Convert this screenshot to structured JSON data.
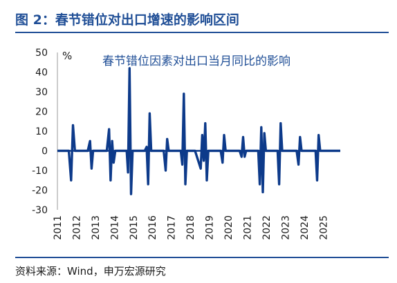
{
  "figure": {
    "title": "图 2：春节错位对出口增速的影响区间",
    "source": "资料来源：Wind，申万宏源研究"
  },
  "colors": {
    "accent": "#1f4e96",
    "line": "#0d3a8a"
  },
  "chart_data": {
    "type": "line",
    "title": "春节错位因素对出口当月同比的影响",
    "unit": "%",
    "xlabel": "",
    "ylabel": "",
    "ylim": [
      -30,
      50
    ],
    "yticks": [
      50,
      40,
      30,
      20,
      10,
      0,
      -10,
      -20,
      -30
    ],
    "xticks": [
      "2011",
      "2012",
      "2013",
      "2014",
      "2015",
      "2016",
      "2017",
      "2018",
      "2019",
      "2020",
      "2021",
      "2022",
      "2023",
      "2024",
      "2025"
    ],
    "xlim": [
      2011,
      2025.9
    ],
    "grid": false,
    "legend": "none",
    "series": [
      {
        "name": "",
        "x": [
          2011.0,
          2011.6,
          2011.72,
          2011.82,
          2011.92,
          2012.0,
          2012.08,
          2012.16,
          2012.25,
          2012.6,
          2012.72,
          2012.8,
          2012.88,
          2013.0,
          2013.08,
          2013.16,
          2013.25,
          2013.6,
          2013.72,
          2013.8,
          2013.88,
          2013.96,
          2014.05,
          2014.14,
          2014.25,
          2014.65,
          2014.72,
          2014.8,
          2014.88,
          2014.96,
          2015.05,
          2015.14,
          2015.25,
          2015.6,
          2015.7,
          2015.78,
          2015.86,
          2015.94,
          2016.02,
          2016.12,
          2016.25,
          2016.6,
          2016.7,
          2016.78,
          2016.86,
          2016.94,
          2017.02,
          2017.12,
          2017.25,
          2017.5,
          2017.58,
          2017.66,
          2017.74,
          2017.82,
          2017.92,
          2018.02,
          2018.12,
          2018.25,
          2018.55,
          2018.63,
          2018.71,
          2018.79,
          2018.87,
          2018.95,
          2019.05,
          2019.25,
          2019.6,
          2019.7,
          2019.78,
          2019.86,
          2019.94,
          2020.02,
          2020.12,
          2020.25,
          2020.6,
          2020.7,
          2020.78,
          2020.86,
          2020.94,
          2021.02,
          2021.12,
          2021.25,
          2021.5,
          2021.58,
          2021.66,
          2021.74,
          2021.82,
          2021.9,
          2021.98,
          2022.06,
          2022.14,
          2022.25,
          2022.6,
          2022.68,
          2022.76,
          2022.84,
          2022.92,
          2023.0,
          2023.1,
          2023.25,
          2023.6,
          2023.7,
          2023.78,
          2023.86,
          2023.94,
          2024.02,
          2024.12,
          2024.25,
          2024.6,
          2024.68,
          2024.76,
          2024.84,
          2024.92,
          2025.0,
          2025.1,
          2025.25,
          2025.9
        ],
        "values": [
          0,
          0,
          -15,
          13,
          0,
          0,
          0,
          0,
          0,
          0,
          5,
          -9,
          0,
          0,
          0,
          0,
          0,
          0,
          11,
          -15,
          5,
          -6,
          0,
          0,
          0,
          0,
          -11,
          42,
          -22,
          0,
          0,
          0,
          0,
          0,
          2,
          -17,
          19,
          0,
          0,
          0,
          0,
          0,
          -10,
          6,
          0,
          0,
          0,
          0,
          0,
          0,
          -7,
          29,
          -17,
          0,
          0,
          0,
          0,
          0,
          -9,
          8,
          -5,
          14,
          -15,
          0,
          0,
          0,
          0,
          -6,
          8,
          0,
          0,
          0,
          0,
          0,
          0,
          -3,
          7,
          -3,
          0,
          0,
          0,
          0,
          0,
          0,
          -17,
          12,
          -21,
          9,
          0,
          0,
          0,
          0,
          0,
          -17,
          14,
          0,
          0,
          0,
          0,
          0,
          0,
          -7,
          7,
          0,
          0,
          0,
          0,
          0,
          0,
          -15,
          8,
          0,
          0,
          0,
          0,
          0,
          0
        ]
      }
    ]
  }
}
